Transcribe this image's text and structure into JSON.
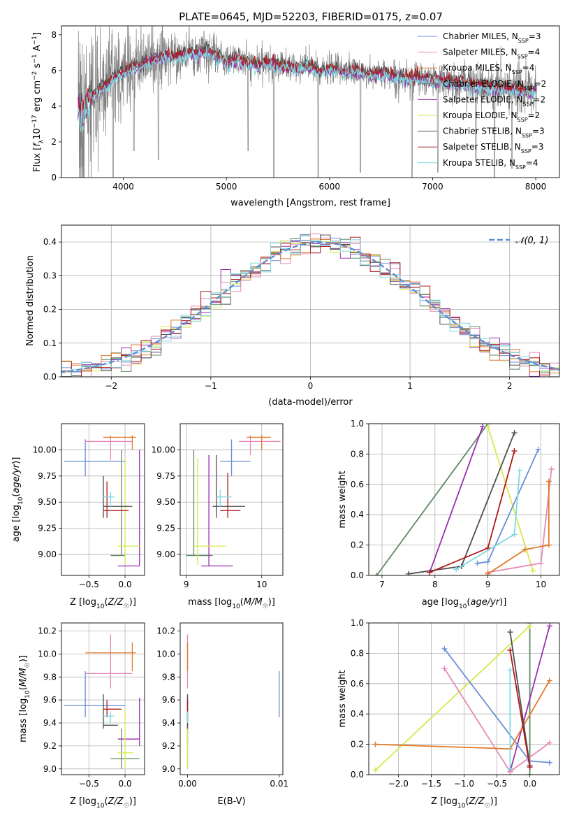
{
  "figure": {
    "title": "PLATE=0645, MJD=52203, FIBERID=0175, z=0.07"
  },
  "colors": {
    "Chabrier MILES": "#6a8fd8",
    "Salpeter MILES": "#e48ab8",
    "Kroupa MILES": "#e07a2a",
    "Chabrier ELODIE": "#5f8a66",
    "Salpeter ELODIE": "#9a2fb0",
    "Kroupa ELODIE": "#d5ea4a",
    "Chabrier STELIB": "#4f4f4f",
    "Salpeter STELIB": "#b01818",
    "Kroupa STELIB": "#7fd9e0",
    "data": "#808080"
  },
  "chart_data": [
    {
      "id": "spectrum",
      "type": "line",
      "xlabel": "wavelength [Angstrom, rest frame]",
      "ylabel": "Flux [fλ10⁻¹⁷ erg cm⁻² s⁻¹ A⁻¹]",
      "xlim": [
        3400,
        8230
      ],
      "ylim": [
        0,
        8.5
      ],
      "xticks": [
        4000,
        5000,
        6000,
        7000,
        8000
      ],
      "yticks": [
        0,
        2,
        4,
        6,
        8
      ],
      "grid": false,
      "legend_position": "top-right",
      "legend": [
        {
          "model": "Chabrier MILES",
          "label": "Chabrier MILES, N",
          "sub": "SSP",
          "tail": "=3"
        },
        {
          "model": "Salpeter MILES",
          "label": "Salpeter MILES, N",
          "sub": "SSP",
          "tail": "=4"
        },
        {
          "model": "Kroupa MILES",
          "label": "Kroupa MILES, N",
          "sub": "SSP",
          "tail": "=4"
        },
        {
          "model": "Chabrier ELODIE",
          "label": "Chabrier ELODIE, N",
          "sub": "SSP",
          "tail": "=2"
        },
        {
          "model": "Salpeter ELODIE",
          "label": "Salpeter ELODIE, N",
          "sub": "SSP",
          "tail": "=2"
        },
        {
          "model": "Kroupa ELODIE",
          "label": "Kroupa ELODIE, N",
          "sub": "SSP",
          "tail": "=2"
        },
        {
          "model": "Chabrier STELIB",
          "label": "Chabrier STELIB, N",
          "sub": "SSP",
          "tail": "=3"
        },
        {
          "model": "Salpeter STELIB",
          "label": "Salpeter STELIB, N",
          "sub": "SSP",
          "tail": "=3"
        },
        {
          "model": "Kroupa STELIB",
          "label": "Kroupa STELIB, N",
          "sub": "SSP",
          "tail": "=4"
        }
      ],
      "continuum": {
        "x": [
          3560,
          3620,
          3700,
          3800,
          3900,
          4000,
          4100,
          4200,
          4300,
          4400,
          4500,
          4600,
          4700,
          4800,
          4900,
          5000,
          5100,
          5200,
          5300,
          5400,
          5500,
          5600,
          5700,
          5800,
          5900,
          6000,
          6100,
          6200,
          6300,
          6400,
          6500,
          6600,
          6700,
          6800,
          6900,
          7000,
          7100,
          7200,
          7300,
          7400,
          7500,
          7600,
          7700,
          7800,
          7900,
          8000
        ],
        "y": [
          4.1,
          3.8,
          4.6,
          5.0,
          5.6,
          5.9,
          6.2,
          6.4,
          6.6,
          6.8,
          6.8,
          6.9,
          7.0,
          7.1,
          6.8,
          6.5,
          6.6,
          6.4,
          6.3,
          6.4,
          6.3,
          6.2,
          6.1,
          6.3,
          5.9,
          6.1,
          6.0,
          6.0,
          5.9,
          5.8,
          5.8,
          5.7,
          5.6,
          5.6,
          5.5,
          5.5,
          5.4,
          5.3,
          5.3,
          5.2,
          5.1,
          5.1,
          5.0,
          4.9,
          4.9,
          4.8
        ]
      },
      "data_noise_amplitude": [
        [
          3560,
          6
        ],
        [
          3900,
          2.5
        ],
        [
          4300,
          1.5
        ],
        [
          5000,
          0.9
        ],
        [
          6500,
          0.8
        ],
        [
          7500,
          1.2
        ],
        [
          8000,
          1.6
        ]
      ],
      "absorption_dips": [
        [
          3900,
          0
        ],
        [
          4102,
          1.5
        ],
        [
          4340,
          1.0
        ],
        [
          5210,
          1.5
        ],
        [
          5460,
          0
        ],
        [
          5890,
          0
        ],
        [
          6300,
          0.3
        ],
        [
          6800,
          0
        ],
        [
          7050,
          0.3
        ],
        [
          7420,
          1.0
        ],
        [
          7600,
          0
        ],
        [
          7770,
          0.5
        ]
      ]
    },
    {
      "id": "residuals",
      "type": "step",
      "xlabel": "(data-model)/error",
      "ylabel": "Normed distribution",
      "xlim": [
        -2.5,
        2.5
      ],
      "ylim": [
        0,
        0.45
      ],
      "xticks": [
        -2,
        -1,
        0,
        1,
        2
      ],
      "yticks": [
        0.0,
        0.1,
        0.2,
        0.3,
        0.4
      ],
      "grid": true,
      "legend_position": "top-right",
      "legend_label": "𝒩(0, 1)",
      "bin_width": 0.1,
      "reference": {
        "mu": 0.1,
        "sigma": 1.0,
        "color": "#5a8fd8"
      }
    },
    {
      "id": "age-vs-Z",
      "type": "scatter",
      "xlabel": "Z [log₁₀(Z/Z☉)]",
      "ylabel": "age  [log₁₀(age/yr)]",
      "xlim": [
        -0.88,
        0.27
      ],
      "ylim": [
        8.8,
        10.25
      ],
      "xticks": [
        -0.5,
        0.0
      ],
      "yticks": [
        9.0,
        9.25,
        9.5,
        9.75,
        10.0
      ],
      "grid": true,
      "errorbars": [
        {
          "model": "Chabrier MILES",
          "x": -0.55,
          "xlo": -0.85,
          "xhi": 0.0,
          "y": 9.89,
          "ylo": 9.75,
          "yhi": 10.1
        },
        {
          "model": "Salpeter MILES",
          "x": -0.2,
          "xlo": -0.55,
          "xhi": 0.1,
          "y": 10.08,
          "ylo": 9.9,
          "yhi": 10.14
        },
        {
          "model": "Kroupa MILES",
          "x": 0.1,
          "xlo": -0.3,
          "xhi": 0.15,
          "y": 10.12,
          "ylo": 10.0,
          "yhi": 10.14
        },
        {
          "model": "Chabrier ELODIE",
          "x": -0.05,
          "xlo": -0.2,
          "xhi": 0.0,
          "y": 8.99,
          "ylo": 8.99,
          "yhi": 10.0
        },
        {
          "model": "Salpeter ELODIE",
          "x": 0.2,
          "xlo": -0.1,
          "xhi": 0.2,
          "y": 8.89,
          "ylo": 8.89,
          "yhi": 10.0
        },
        {
          "model": "Kroupa ELODIE",
          "x": 0.0,
          "xlo": -0.1,
          "xhi": 0.2,
          "y": 9.08,
          "ylo": 8.9,
          "yhi": 9.92
        },
        {
          "model": "Chabrier STELIB",
          "x": -0.3,
          "xlo": -0.3,
          "xhi": 0.1,
          "y": 9.46,
          "ylo": 9.35,
          "yhi": 9.75
        },
        {
          "model": "Salpeter STELIB",
          "x": -0.25,
          "xlo": -0.3,
          "xhi": 0.05,
          "y": 9.42,
          "ylo": 9.35,
          "yhi": 9.7
        },
        {
          "model": "Kroupa STELIB",
          "x": -0.2,
          "xlo": -0.3,
          "xhi": -0.15,
          "y": 9.55,
          "ylo": 9.45,
          "yhi": 9.6
        }
      ]
    },
    {
      "id": "age-vs-mass",
      "type": "scatter",
      "xlabel": "mass [log₁₀(M/M☉)]",
      "ylabel": "",
      "xlim": [
        8.92,
        10.28
      ],
      "ylim": [
        8.8,
        10.25
      ],
      "xticks": [
        9,
        10
      ],
      "yticks": [
        9.0,
        9.25,
        9.5,
        9.75,
        10.0
      ],
      "grid": true,
      "errorbars": [
        {
          "model": "Chabrier MILES",
          "x": 9.6,
          "xlo": 9.45,
          "xhi": 9.85,
          "y": 9.89,
          "ylo": 9.75,
          "yhi": 10.1
        },
        {
          "model": "Salpeter MILES",
          "x": 9.85,
          "xlo": 9.7,
          "xhi": 10.25,
          "y": 10.08,
          "ylo": 9.95,
          "yhi": 10.14
        },
        {
          "model": "Kroupa MILES",
          "x": 10.0,
          "xlo": 9.8,
          "xhi": 10.12,
          "y": 10.12,
          "ylo": 10.0,
          "yhi": 10.14
        },
        {
          "model": "Chabrier ELODIE",
          "x": 9.1,
          "xlo": 9.0,
          "xhi": 9.35,
          "y": 8.99,
          "ylo": 8.99,
          "yhi": 10.0
        },
        {
          "model": "Salpeter ELODIE",
          "x": 9.3,
          "xlo": 9.2,
          "xhi": 9.62,
          "y": 8.89,
          "ylo": 8.89,
          "yhi": 9.95
        },
        {
          "model": "Kroupa ELODIE",
          "x": 9.15,
          "xlo": 9.1,
          "xhi": 9.52,
          "y": 9.08,
          "ylo": 8.9,
          "yhi": 9.92
        },
        {
          "model": "Chabrier STELIB",
          "x": 9.4,
          "xlo": 9.35,
          "xhi": 9.78,
          "y": 9.46,
          "ylo": 9.35,
          "yhi": 9.95
        },
        {
          "model": "Salpeter STELIB",
          "x": 9.55,
          "xlo": 9.45,
          "xhi": 9.72,
          "y": 9.42,
          "ylo": 9.35,
          "yhi": 9.78
        },
        {
          "model": "Kroupa STELIB",
          "x": 9.45,
          "xlo": 9.4,
          "xhi": 9.6,
          "y": 9.55,
          "ylo": 9.45,
          "yhi": 9.62
        }
      ]
    },
    {
      "id": "weight-vs-age",
      "type": "line",
      "xlabel": "age  [log₁₀(age/yr)]",
      "ylabel": "mass weight",
      "xlim": [
        6.75,
        10.35
      ],
      "ylim": [
        0,
        1.0
      ],
      "xticks": [
        7,
        8,
        9,
        10
      ],
      "yticks": [
        0.0,
        0.2,
        0.4,
        0.6,
        0.8,
        1.0
      ],
      "grid": true,
      "series": [
        {
          "model": "Chabrier MILES",
          "x": [
            8.8,
            9.0,
            9.95
          ],
          "y": [
            0.08,
            0.09,
            0.83
          ]
        },
        {
          "model": "Salpeter MILES",
          "x": [
            9.0,
            10.0,
            10.2
          ],
          "y": [
            0.02,
            0.08,
            0.7
          ]
        },
        {
          "model": "Kroupa MILES",
          "x": [
            9.0,
            9.7,
            10.15,
            10.15
          ],
          "y": [
            0.01,
            0.17,
            0.2,
            0.62
          ]
        },
        {
          "model": "Chabrier ELODIE",
          "x": [
            6.9,
            9.0
          ],
          "y": [
            0.0,
            1.0
          ]
        },
        {
          "model": "Salpeter ELODIE",
          "x": [
            7.9,
            8.9
          ],
          "y": [
            0.02,
            0.98
          ]
        },
        {
          "model": "Kroupa ELODIE",
          "x": [
            9.0,
            9.85
          ],
          "y": [
            0.98,
            0.03
          ]
        },
        {
          "model": "Chabrier STELIB",
          "x": [
            7.5,
            8.5,
            9.5
          ],
          "y": [
            0.01,
            0.06,
            0.94
          ]
        },
        {
          "model": "Salpeter STELIB",
          "x": [
            7.9,
            9.0,
            9.5
          ],
          "y": [
            0.02,
            0.18,
            0.82
          ]
        },
        {
          "model": "Kroupa STELIB",
          "x": [
            8.4,
            9.5,
            9.6
          ],
          "y": [
            0.04,
            0.27,
            0.69
          ]
        }
      ]
    },
    {
      "id": "mass-vs-Z",
      "type": "scatter",
      "xlabel": "Z [log₁₀(Z/Z☉)]",
      "ylabel": "mass [log₁₀(M/M☉)]",
      "xlim": [
        -0.88,
        0.27
      ],
      "ylim": [
        8.95,
        10.27
      ],
      "xticks": [
        -0.5,
        0.0
      ],
      "yticks": [
        9.0,
        9.2,
        9.4,
        9.6,
        9.8,
        10.0,
        10.2
      ],
      "grid": true,
      "errorbars": [
        {
          "model": "Chabrier MILES",
          "x": -0.55,
          "xlo": -0.85,
          "xhi": 0.0,
          "y": 9.55,
          "ylo": 9.45,
          "yhi": 9.85
        },
        {
          "model": "Salpeter MILES",
          "x": -0.2,
          "xlo": -0.55,
          "xhi": 0.1,
          "y": 9.83,
          "ylo": 9.7,
          "yhi": 10.17
        },
        {
          "model": "Kroupa MILES",
          "x": 0.1,
          "xlo": -0.55,
          "xhi": 0.15,
          "y": 10.01,
          "ylo": 9.85,
          "yhi": 10.1
        },
        {
          "model": "Chabrier ELODIE",
          "x": -0.05,
          "xlo": -0.2,
          "xhi": 0.2,
          "y": 9.09,
          "ylo": 9.0,
          "yhi": 9.35
        },
        {
          "model": "Salpeter ELODIE",
          "x": 0.2,
          "xlo": -0.1,
          "xhi": 0.2,
          "y": 9.26,
          "ylo": 9.2,
          "yhi": 9.62
        },
        {
          "model": "Kroupa ELODIE",
          "x": 0.0,
          "xlo": -0.1,
          "xhi": 0.12,
          "y": 9.14,
          "ylo": 9.0,
          "yhi": 9.52
        },
        {
          "model": "Chabrier STELIB",
          "x": -0.3,
          "xlo": -0.3,
          "xhi": -0.1,
          "y": 9.38,
          "ylo": 9.35,
          "yhi": 9.65
        },
        {
          "model": "Salpeter STELIB",
          "x": -0.25,
          "xlo": -0.3,
          "xhi": -0.05,
          "y": 9.52,
          "ylo": 9.45,
          "yhi": 9.6
        },
        {
          "model": "Kroupa STELIB",
          "x": -0.2,
          "xlo": -0.3,
          "xhi": -0.15,
          "y": 9.46,
          "ylo": 9.4,
          "yhi": 9.5
        }
      ]
    },
    {
      "id": "mass-vs-EBV",
      "type": "scatter",
      "xlabel": "E(B-V)",
      "ylabel": "",
      "xlim": [
        -0.0008,
        0.0104
      ],
      "ylim": [
        8.95,
        10.27
      ],
      "xticks": [
        0.0,
        0.01
      ],
      "xtick_labels": [
        "0.00",
        "0.01"
      ],
      "yticks": [
        9.0,
        9.2,
        9.4,
        9.6,
        9.8,
        10.0,
        10.2
      ],
      "grid": false,
      "errorbars": [
        {
          "model": "Chabrier MILES",
          "x": 0.01,
          "y": 9.55,
          "ylo": 9.45,
          "yhi": 9.85
        },
        {
          "model": "Salpeter MILES",
          "x": 0.0,
          "y": 9.83,
          "ylo": 9.7,
          "yhi": 10.17
        },
        {
          "model": "Kroupa MILES",
          "x": 0.0,
          "y": 10.01,
          "ylo": 9.85,
          "yhi": 10.1
        },
        {
          "model": "Chabrier ELODIE",
          "x": 0.0,
          "y": 9.09,
          "ylo": 9.0,
          "yhi": 9.35
        },
        {
          "model": "Salpeter ELODIE",
          "x": 0.0,
          "y": 9.26,
          "ylo": 9.2,
          "yhi": 9.62
        },
        {
          "model": "Kroupa ELODIE",
          "x": 0.0,
          "y": 9.14,
          "ylo": 9.0,
          "yhi": 9.52
        },
        {
          "model": "Chabrier STELIB",
          "x": 0.0,
          "y": 9.38,
          "ylo": 9.35,
          "yhi": 9.65
        },
        {
          "model": "Salpeter STELIB",
          "x": 0.0,
          "y": 9.52,
          "ylo": 9.45,
          "yhi": 9.6
        },
        {
          "model": "Kroupa STELIB",
          "x": 0.0,
          "y": 9.46,
          "ylo": 9.4,
          "yhi": 9.5
        }
      ]
    },
    {
      "id": "weight-vs-Z",
      "type": "line",
      "xlabel": "Z [log₁₀(Z/Z☉)]",
      "ylabel": "mass weight",
      "xlim": [
        -2.45,
        0.45
      ],
      "ylim": [
        0,
        1.0
      ],
      "xticks": [
        -2.0,
        -1.5,
        -1.0,
        -0.5,
        0.0
      ],
      "yticks": [
        0.0,
        0.2,
        0.4,
        0.6,
        0.8,
        1.0
      ],
      "grid": true,
      "series": [
        {
          "model": "Chabrier MILES",
          "x": [
            -1.3,
            0.0,
            0.3
          ],
          "y": [
            0.83,
            0.09,
            0.08
          ]
        },
        {
          "model": "Salpeter MILES",
          "x": [
            -1.3,
            -0.3,
            0.3
          ],
          "y": [
            0.7,
            0.02,
            0.21
          ]
        },
        {
          "model": "Kroupa MILES",
          "x": [
            -2.35,
            -0.3,
            0.3
          ],
          "y": [
            0.2,
            0.17,
            0.62
          ]
        },
        {
          "model": "Chabrier ELODIE",
          "x": [
            0.0,
            0.0
          ],
          "y": [
            1.0,
            0.0
          ]
        },
        {
          "model": "Salpeter ELODIE",
          "x": [
            -0.3,
            0.3
          ],
          "y": [
            0.02,
            0.98
          ]
        },
        {
          "model": "Kroupa ELODIE",
          "x": [
            -2.35,
            0.0
          ],
          "y": [
            0.03,
            0.98
          ]
        },
        {
          "model": "Chabrier STELIB",
          "x": [
            -0.3,
            0.0
          ],
          "y": [
            0.94,
            0.06
          ]
        },
        {
          "model": "Salpeter STELIB",
          "x": [
            -0.3,
            0.0
          ],
          "y": [
            0.82,
            0.05
          ]
        },
        {
          "model": "Kroupa STELIB",
          "x": [
            -0.3,
            -0.3
          ],
          "y": [
            0.69,
            0.04
          ]
        }
      ]
    }
  ]
}
